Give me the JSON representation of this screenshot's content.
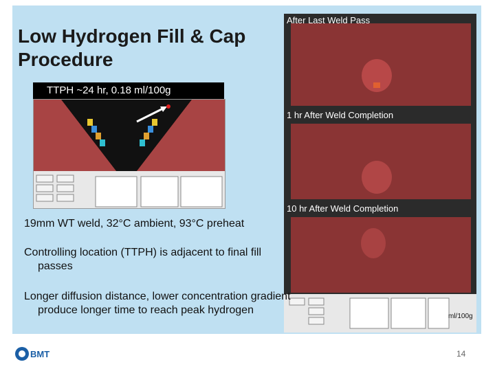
{
  "title": "Low Hydrogen Fill & Cap Procedure",
  "ttph_caption": "TTPH ~24 hr, 0.18 ml/100g",
  "panels": [
    {
      "label": "After Last Weld Pass"
    },
    {
      "label": "1 hr After Weld Completion"
    },
    {
      "label": "10 hr After Weld Completion"
    }
  ],
  "conditions": "19mm WT weld, 32°C ambient, 93°C preheat",
  "bullet1": "Controlling location (TTPH) is adjacent to final fill passes",
  "bullet2": "Longer diffusion distance, lower concentration gradient produce longer time to reach peak hydrogen",
  "unit_label": "ml/100g",
  "page_number": "14",
  "logo_text": "BMT",
  "colors": {
    "panel_bg": "#bfe0f2",
    "hydrogen_dark": "#7a2e2e",
    "hydrogen_mid": "#b24848",
    "logo_blue": "#1b5fa6"
  }
}
